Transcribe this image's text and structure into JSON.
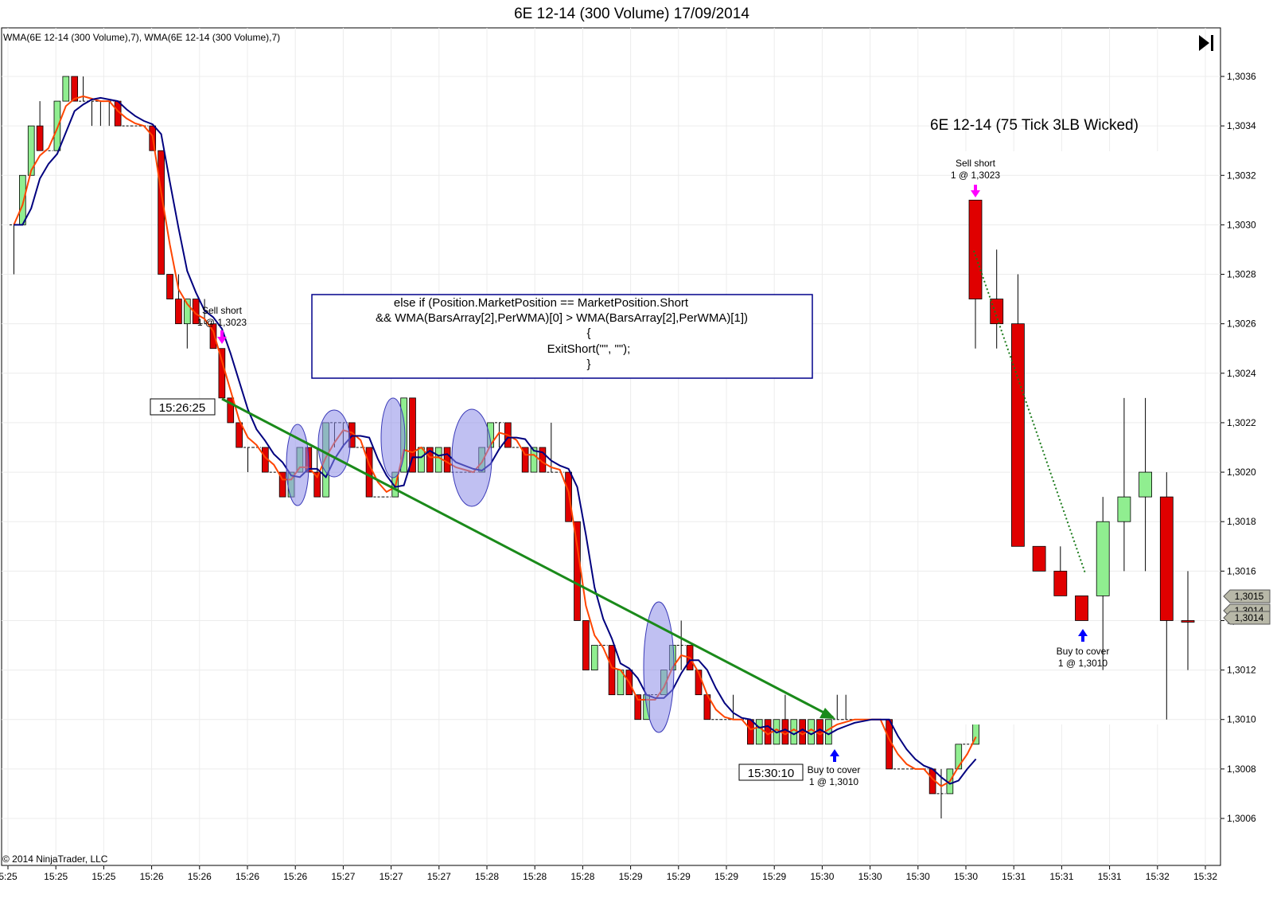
{
  "window": {
    "title": "6E 12-14 (300 Volume)  17/09/2014",
    "indicator_label": "WMA(6E 12-14  (300 Volume),7), WMA(6E 12-14  (300 Volume),7)",
    "copyright": "© 2014 NinjaTrader, LLC",
    "goto_end_icon": "skip-to-end-icon"
  },
  "code_box": {
    "lines": [
      "else if (Position.MarketPosition == MarketPosition.Short",
      "&& WMA(BarsArray[2],PerWMA)[0] > WMA(BarsArray[2],PerWMA)[1])",
      "{",
      "ExitShort(\"\", \"\");",
      "}"
    ]
  },
  "annotations": {
    "entry_time": "15:26:25",
    "exit_time": "15:30:10",
    "sell_short_label": "Sell short",
    "sell_short_detail": "1 @ 1,3023",
    "buy_cover_label": "Buy to cover",
    "buy_cover_detail": "1 @ 1,3010",
    "inset_sell_short_label": "Sell short",
    "inset_sell_short_detail": "1 @ 1,3023",
    "inset_buy_cover_label": "Buy to cover",
    "inset_buy_cover_detail": "1 @ 1,3010"
  },
  "price_badges": [
    "1,3015",
    "1,3014",
    "1,3014"
  ],
  "colors": {
    "up_candle": "#90ee90",
    "down_candle": "#e00000",
    "wma_fast": "#ff4500",
    "wma_slow": "#00007f",
    "trade_line": "#1a8a1a",
    "ellipse_fill": "#9fa0f0",
    "code_box_border": "#00008b",
    "sell_marker": "#ff00ff",
    "buy_marker": "#0000ff"
  },
  "chart_data": [
    {
      "type": "candlestick",
      "title": "6E 12-14 (300 Volume)  17/09/2014",
      "ylim": [
        1.3002,
        1.3038
      ],
      "grid": true,
      "y_ticks": [
        "1,3006",
        "1,3008",
        "1,3010",
        "1,3012",
        "1,3014",
        "1,3016",
        "1,3018",
        "1,3020",
        "1,3022",
        "1,3024",
        "1,3026",
        "1,3028",
        "1,3030",
        "1,3032",
        "1,3034",
        "1,3036"
      ],
      "y_tick_values": [
        1.3006,
        1.3008,
        1.301,
        1.3012,
        1.3014,
        1.3016,
        1.3018,
        1.302,
        1.3022,
        1.3024,
        1.3026,
        1.3028,
        1.303,
        1.3032,
        1.3034,
        1.3036
      ],
      "x_ticks": [
        "5:25",
        "15:25",
        "15:25",
        "15:26",
        "15:26",
        "15:26",
        "15:26",
        "15:27",
        "15:27",
        "15:27",
        "15:28",
        "15:28",
        "15:28",
        "15:29",
        "15:29",
        "15:29",
        "15:29",
        "15:30",
        "15:30",
        "15:30",
        "15:30",
        "15:31",
        "15:31",
        "15:31",
        "15:32",
        "15:32"
      ],
      "candles": [
        [
          1.303,
          1.303,
          1.3028,
          1.303
        ],
        [
          1.303,
          1.3032,
          1.303,
          1.3032
        ],
        [
          1.3032,
          1.3034,
          1.3032,
          1.3034
        ],
        [
          1.3034,
          1.3035,
          1.3033,
          1.3033
        ],
        [
          1.3033,
          1.3033,
          1.3033,
          1.3033
        ],
        [
          1.3033,
          1.3035,
          1.3033,
          1.3035
        ],
        [
          1.3035,
          1.3036,
          1.3035,
          1.3036
        ],
        [
          1.3036,
          1.3036,
          1.3035,
          1.3035
        ],
        [
          1.3035,
          1.3036,
          1.3035,
          1.3035
        ],
        [
          1.3035,
          1.3035,
          1.3034,
          1.3035
        ],
        [
          1.3035,
          1.3035,
          1.3034,
          1.3035
        ],
        [
          1.3035,
          1.3035,
          1.3034,
          1.3035
        ],
        [
          1.3035,
          1.3035,
          1.3034,
          1.3034
        ],
        [
          1.3034,
          1.3034,
          1.3034,
          1.3034
        ],
        [
          1.3034,
          1.3034,
          1.3034,
          1.3034
        ],
        [
          1.3034,
          1.3034,
          1.3034,
          1.3034
        ],
        [
          1.3034,
          1.3034,
          1.3033,
          1.3033
        ],
        [
          1.3033,
          1.3033,
          1.3028,
          1.3028
        ],
        [
          1.3028,
          1.3028,
          1.3027,
          1.3027
        ],
        [
          1.3027,
          1.3028,
          1.3026,
          1.3026
        ],
        [
          1.3026,
          1.3027,
          1.3025,
          1.3027
        ],
        [
          1.3027,
          1.3027,
          1.3026,
          1.3026
        ],
        [
          1.3026,
          1.3027,
          1.3026,
          1.3026
        ],
        [
          1.3026,
          1.3026,
          1.3025,
          1.3025
        ],
        [
          1.3025,
          1.3025,
          1.3023,
          1.3023
        ],
        [
          1.3023,
          1.3023,
          1.3022,
          1.3022
        ],
        [
          1.3022,
          1.3022,
          1.3021,
          1.3021
        ],
        [
          1.3021,
          1.3021,
          1.302,
          1.3021
        ],
        [
          1.3021,
          1.3021,
          1.3021,
          1.3021
        ],
        [
          1.3021,
          1.3021,
          1.302,
          1.302
        ],
        [
          1.302,
          1.302,
          1.302,
          1.302
        ],
        [
          1.302,
          1.302,
          1.3019,
          1.3019
        ],
        [
          1.3019,
          1.302,
          1.3019,
          1.302
        ],
        [
          1.302,
          1.3021,
          1.302,
          1.3021
        ],
        [
          1.3021,
          1.3021,
          1.302,
          1.302
        ],
        [
          1.302,
          1.3021,
          1.3019,
          1.3019
        ],
        [
          1.3019,
          1.3022,
          1.3019,
          1.3022
        ],
        [
          1.3022,
          1.3022,
          1.3021,
          1.3022
        ],
        [
          1.3022,
          1.3022,
          1.3021,
          1.3022
        ],
        [
          1.3022,
          1.3022,
          1.3021,
          1.3021
        ],
        [
          1.3021,
          1.3021,
          1.3021,
          1.3021
        ],
        [
          1.3021,
          1.3021,
          1.3019,
          1.3019
        ],
        [
          1.3019,
          1.3019,
          1.3019,
          1.3019
        ],
        [
          1.3019,
          1.3019,
          1.3019,
          1.3019
        ],
        [
          1.3019,
          1.302,
          1.3019,
          1.302
        ],
        [
          1.302,
          1.3023,
          1.302,
          1.3023
        ],
        [
          1.3023,
          1.3023,
          1.302,
          1.302
        ],
        [
          1.302,
          1.3021,
          1.302,
          1.3021
        ],
        [
          1.3021,
          1.3021,
          1.302,
          1.302
        ],
        [
          1.302,
          1.3021,
          1.302,
          1.3021
        ],
        [
          1.3021,
          1.3021,
          1.302,
          1.302
        ],
        [
          1.302,
          1.302,
          1.302,
          1.302
        ],
        [
          1.302,
          1.302,
          1.302,
          1.302
        ],
        [
          1.302,
          1.302,
          1.302,
          1.302
        ],
        [
          1.302,
          1.3021,
          1.302,
          1.3021
        ],
        [
          1.3021,
          1.3022,
          1.3021,
          1.3022
        ],
        [
          1.3022,
          1.3022,
          1.3021,
          1.3022
        ],
        [
          1.3022,
          1.3022,
          1.3021,
          1.3021
        ],
        [
          1.3021,
          1.3021,
          1.3021,
          1.3021
        ],
        [
          1.3021,
          1.3021,
          1.302,
          1.302
        ],
        [
          1.302,
          1.3021,
          1.302,
          1.3021
        ],
        [
          1.3021,
          1.3021,
          1.302,
          1.302
        ],
        [
          1.302,
          1.3022,
          1.302,
          1.302
        ],
        [
          1.302,
          1.302,
          1.302,
          1.302
        ],
        [
          1.302,
          1.302,
          1.3018,
          1.3018
        ],
        [
          1.3018,
          1.3018,
          1.3014,
          1.3014
        ],
        [
          1.3014,
          1.3014,
          1.3012,
          1.3012
        ],
        [
          1.3012,
          1.3013,
          1.3012,
          1.3013
        ],
        [
          1.3013,
          1.3013,
          1.3013,
          1.3013
        ],
        [
          1.3013,
          1.3013,
          1.3011,
          1.3011
        ],
        [
          1.3011,
          1.3012,
          1.3011,
          1.3012
        ],
        [
          1.3012,
          1.3012,
          1.3011,
          1.3011
        ],
        [
          1.3011,
          1.3011,
          1.301,
          1.301
        ],
        [
          1.301,
          1.3011,
          1.301,
          1.3011
        ],
        [
          1.3011,
          1.3011,
          1.3011,
          1.3011
        ],
        [
          1.3011,
          1.3012,
          1.3011,
          1.3012
        ],
        [
          1.3012,
          1.3013,
          1.3012,
          1.3013
        ],
        [
          1.3013,
          1.3014,
          1.3012,
          1.3013
        ],
        [
          1.3013,
          1.3013,
          1.3012,
          1.3012
        ],
        [
          1.3012,
          1.3012,
          1.3011,
          1.3011
        ],
        [
          1.3011,
          1.3011,
          1.301,
          1.301
        ],
        [
          1.301,
          1.301,
          1.301,
          1.301
        ],
        [
          1.301,
          1.301,
          1.301,
          1.301
        ],
        [
          1.301,
          1.3011,
          1.301,
          1.301
        ],
        [
          1.301,
          1.301,
          1.301,
          1.301
        ],
        [
          1.301,
          1.301,
          1.3009,
          1.3009
        ],
        [
          1.3009,
          1.301,
          1.3009,
          1.301
        ],
        [
          1.301,
          1.301,
          1.3009,
          1.3009
        ],
        [
          1.3009,
          1.301,
          1.3009,
          1.301
        ],
        [
          1.301,
          1.3011,
          1.3009,
          1.3009
        ],
        [
          1.3009,
          1.301,
          1.3009,
          1.301
        ],
        [
          1.301,
          1.301,
          1.3009,
          1.3009
        ],
        [
          1.3009,
          1.301,
          1.3009,
          1.301
        ],
        [
          1.301,
          1.301,
          1.3009,
          1.3009
        ],
        [
          1.3009,
          1.301,
          1.3009,
          1.301
        ],
        [
          1.301,
          1.3011,
          1.301,
          1.301
        ],
        [
          1.301,
          1.3011,
          1.301,
          1.301
        ],
        [
          1.301,
          1.301,
          1.301,
          1.301
        ],
        [
          1.301,
          1.301,
          1.301,
          1.301
        ],
        [
          1.301,
          1.301,
          1.301,
          1.301
        ],
        [
          1.301,
          1.301,
          1.301,
          1.301
        ],
        [
          1.301,
          1.301,
          1.3008,
          1.3008
        ],
        [
          1.3008,
          1.3008,
          1.3008,
          1.3008
        ],
        [
          1.3008,
          1.3008,
          1.3008,
          1.3008
        ],
        [
          1.3008,
          1.3008,
          1.3008,
          1.3008
        ],
        [
          1.3008,
          1.3008,
          1.3008,
          1.3008
        ],
        [
          1.3008,
          1.3008,
          1.3007,
          1.3007
        ],
        [
          1.3007,
          1.3008,
          1.3006,
          1.3007
        ],
        [
          1.3007,
          1.3008,
          1.3007,
          1.3008
        ],
        [
          1.3008,
          1.3009,
          1.3008,
          1.3009
        ],
        [
          1.3009,
          1.3009,
          1.3009,
          1.3009
        ],
        [
          1.3009,
          1.301,
          1.3009,
          1.301
        ]
      ],
      "series": [
        {
          "name": "WMA(6E 12-14  (300 Volume),7)",
          "color": "#ff4500"
        },
        {
          "name": "WMA(6E 12-14  (300 Volume),7)",
          "color": "#00007f"
        }
      ],
      "markers": [
        {
          "label": "Sell short 1 @ 1,3023",
          "time": "15:26:25",
          "price": 1.3023
        },
        {
          "label": "Buy to cover 1 @ 1,3010",
          "time": "15:30:10",
          "price": 1.301
        }
      ]
    },
    {
      "type": "candlestick",
      "title": "6E 12-14 (75 Tick 3LB Wicked)",
      "ylim": [
        1.3002,
        1.3038
      ],
      "candles": [
        [
          1.3031,
          1.3031,
          1.3025,
          1.3027
        ],
        [
          1.3027,
          1.3029,
          1.3025,
          1.3026
        ],
        [
          1.3026,
          1.3028,
          1.3017,
          1.3017
        ],
        [
          1.3017,
          1.3017,
          1.3016,
          1.3016
        ],
        [
          1.3016,
          1.3017,
          1.3015,
          1.3015
        ],
        [
          1.3015,
          1.3015,
          1.3014,
          1.3014
        ],
        [
          1.3015,
          1.3019,
          1.3012,
          1.3018
        ],
        [
          1.3018,
          1.3023,
          1.3016,
          1.3019
        ],
        [
          1.3019,
          1.3023,
          1.3016,
          1.302
        ],
        [
          1.3019,
          1.302,
          1.301,
          1.3014
        ],
        [
          1.3014,
          1.3016,
          1.3012,
          1.3014
        ]
      ],
      "markers": [
        {
          "label": "Sell short 1 @ 1,3023",
          "price": 1.3023
        },
        {
          "label": "Buy to cover 1 @ 1,3010",
          "price": 1.301
        }
      ]
    }
  ]
}
